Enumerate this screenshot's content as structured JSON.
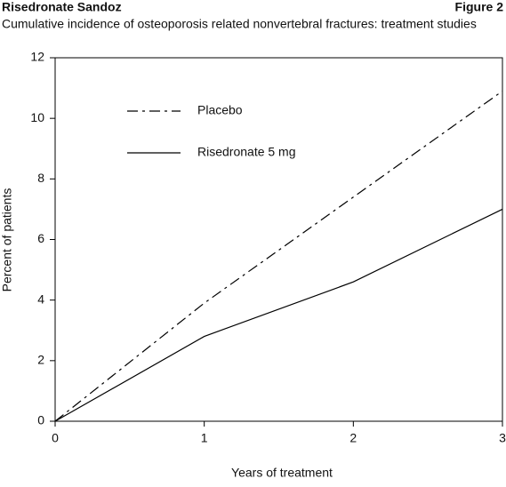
{
  "chart_data": {
    "type": "line",
    "title": "Risedronate Sandoz",
    "figure_label": "Figure 2",
    "subtitle": "Cumulative incidence of osteoporosis related nonvertebral fractures: treatment studies",
    "x_label": "Years of treatment",
    "y_label": "Percent of patients",
    "x": [
      0,
      1,
      2,
      3
    ],
    "series": [
      {
        "name": "Placebo",
        "color": "#000000",
        "dash": "dashdot",
        "values": [
          0,
          3.9,
          7.4,
          10.9
        ]
      },
      {
        "name": "Risedronate 5 mg",
        "color": "#000000",
        "dash": "solid",
        "values": [
          0,
          2.8,
          4.6,
          7.0
        ]
      }
    ],
    "xlim": [
      0,
      3
    ],
    "xticks": [
      0,
      1,
      2,
      3
    ],
    "ylim": [
      0,
      12
    ],
    "yticks": [
      0,
      2,
      4,
      6,
      8,
      10,
      12
    ],
    "grid": false,
    "legend": "upper left"
  }
}
